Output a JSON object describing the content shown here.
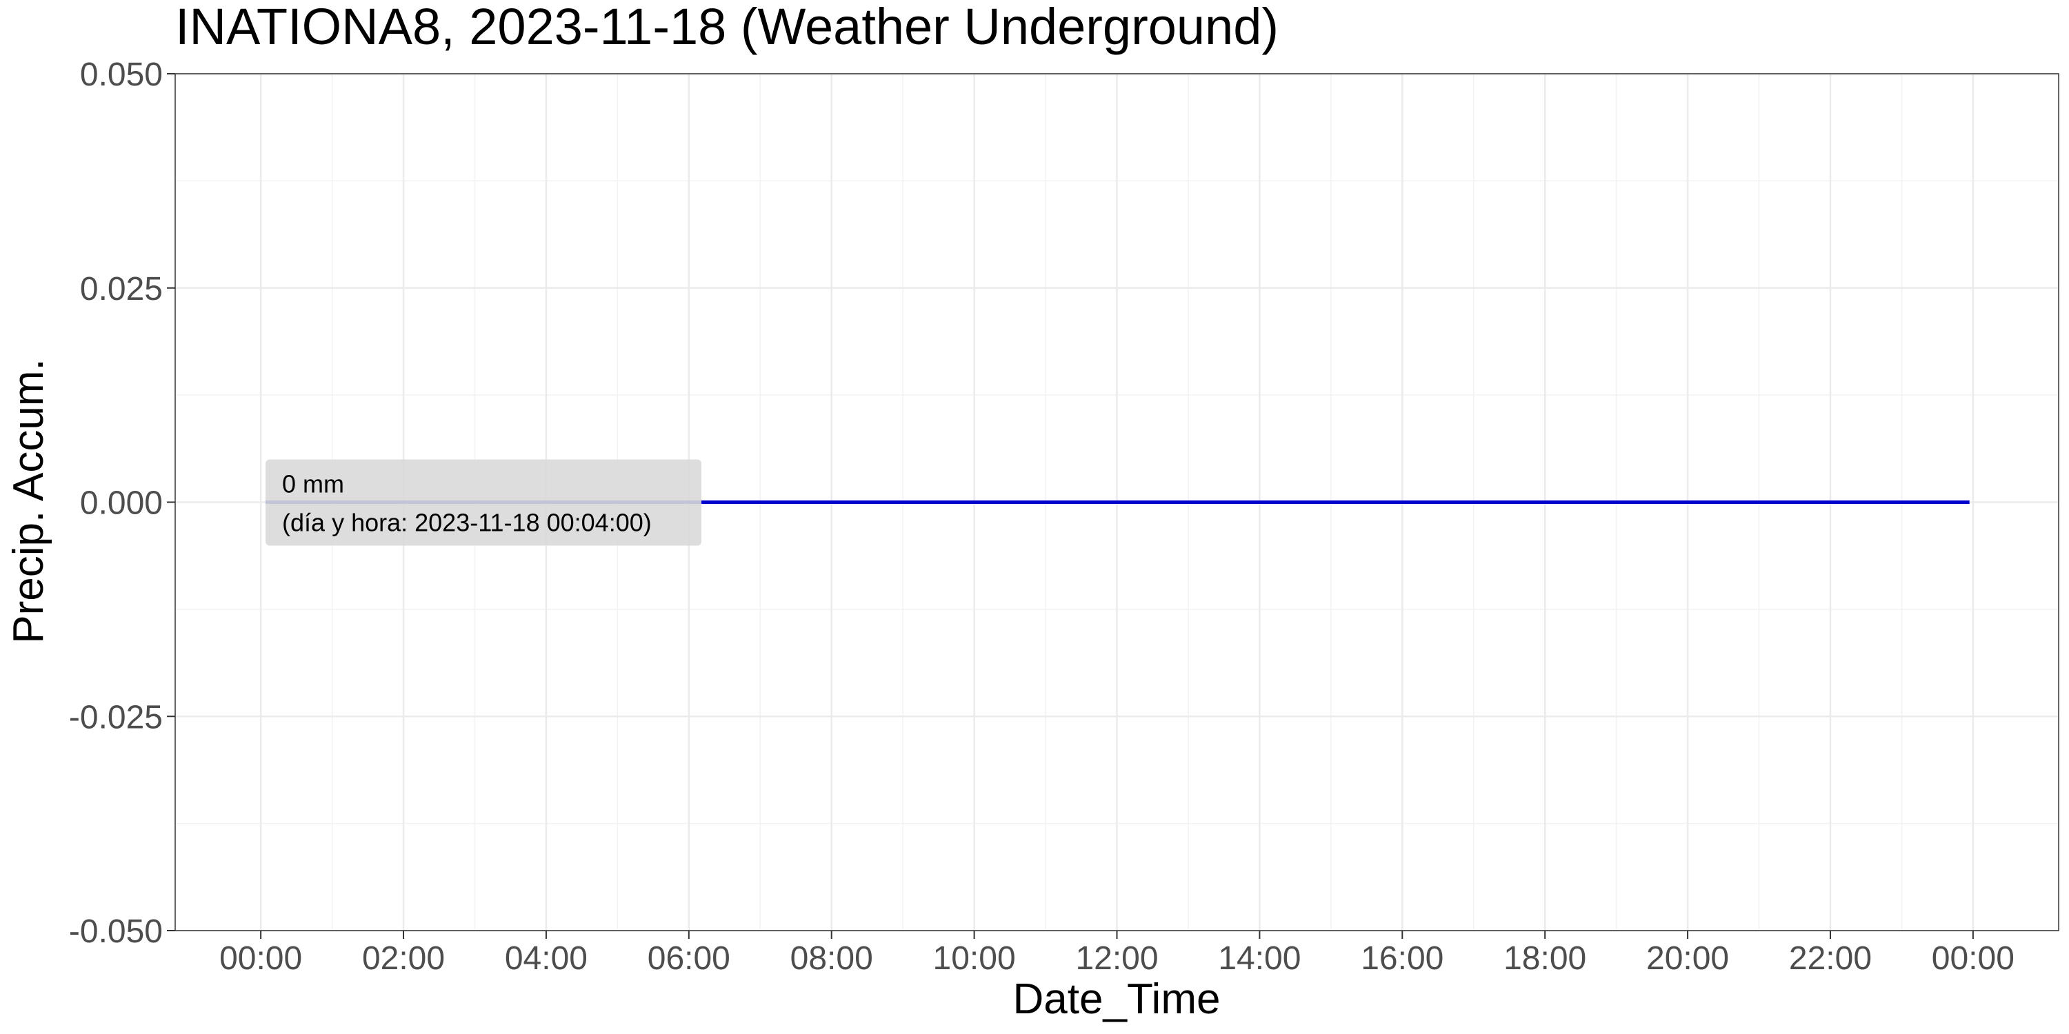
{
  "chart_data": {
    "type": "line",
    "title": "INATIONA8, 2023-11-18 (Weather Underground)",
    "xlabel": "Date_Time",
    "ylabel": "Precip. Accum.",
    "x_tick_labels": [
      "00:00",
      "02:00",
      "04:00",
      "06:00",
      "08:00",
      "10:00",
      "12:00",
      "14:00",
      "16:00",
      "18:00",
      "20:00",
      "22:00",
      "00:00"
    ],
    "x_tick_hours": [
      0,
      2,
      4,
      6,
      8,
      10,
      12,
      14,
      16,
      18,
      20,
      22,
      24
    ],
    "xlim_hours": [
      -1.2,
      25.2
    ],
    "y_ticks": [
      0.05,
      0.025,
      0.0,
      -0.025,
      -0.05
    ],
    "y_tick_labels": [
      "0.050",
      "0.025",
      "0.000",
      "-0.025",
      "-0.050"
    ],
    "ylim": [
      -0.05,
      0.05
    ],
    "grid": true,
    "series": [
      {
        "color": "#0000cc",
        "x_hours": [
          0.0667,
          23.95
        ],
        "values": [
          0,
          0
        ]
      }
    ],
    "annotation": {
      "line1": "0 mm",
      "line2": "(día y hora: 2023-11-18 00:04:00)",
      "x_hours": 0.0667,
      "y": 0
    }
  }
}
